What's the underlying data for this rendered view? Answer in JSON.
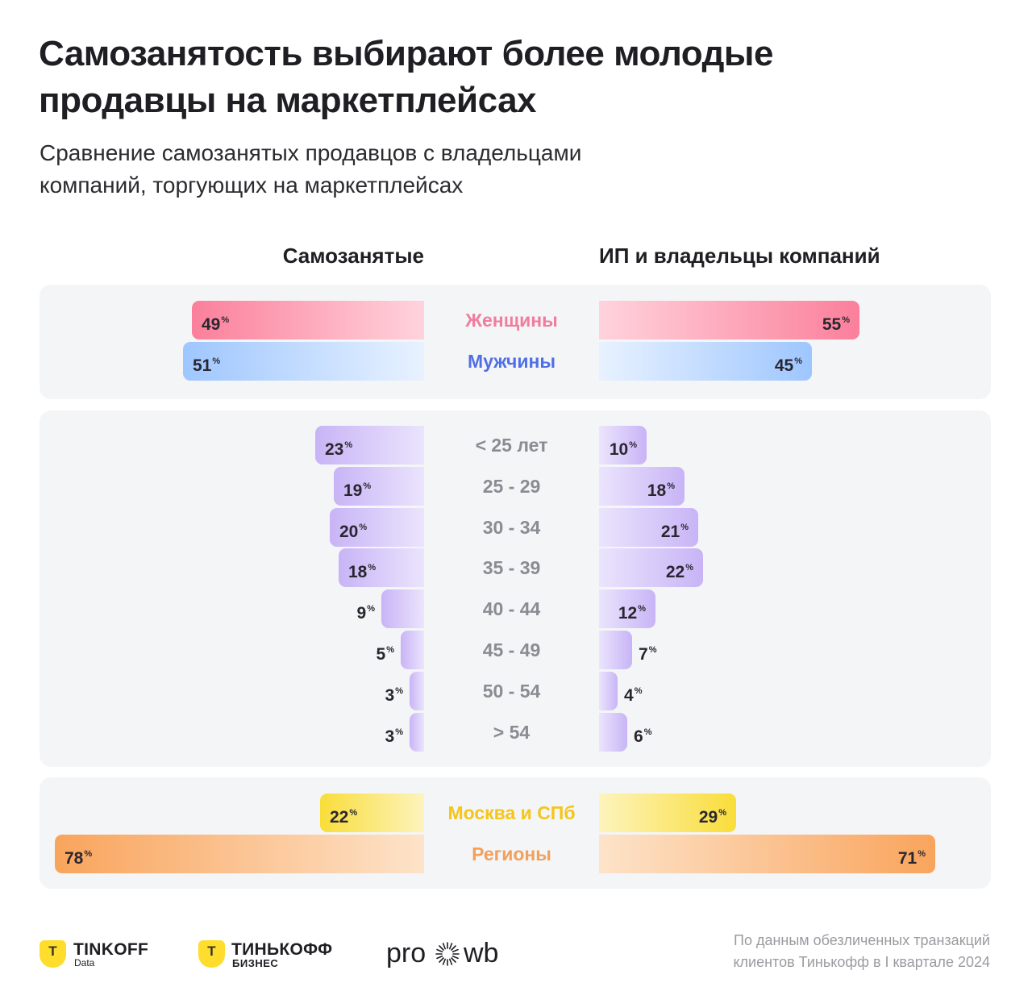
{
  "title_lines": [
    "Самозанятость выбирают более молодые",
    "продавцы на маркетплейсах"
  ],
  "subtitle_lines": [
    "Сравнение самозанятых продавцов с владельцами",
    "компаний, торгующих на маркетплейсах"
  ],
  "columns": {
    "left": "Самозанятые",
    "right": "ИП и владельцы компаний"
  },
  "chart_data": {
    "type": "bar",
    "orientation": "butterfly",
    "title": "Самозанятость выбирают более молодые продавцы на маркетплейсах",
    "subtitle": "Сравнение самозанятых продавцов с владельцами компаний, торгующих на маркетплейсах",
    "unit": "%",
    "groups": [
      {
        "name": "gender",
        "categories": [
          "Женщины",
          "Мужчины"
        ],
        "category_colors": [
          "#ef7e9c",
          "#4f6fe6"
        ],
        "bar_colors": [
          [
            "#fb7f9b",
            "#ffd3dc"
          ],
          [
            "#9ec6ff",
            "#e8f2ff"
          ]
        ],
        "series": [
          {
            "name": "Самозанятые",
            "values": [
              49,
              51
            ]
          },
          {
            "name": "ИП и владельцы компаний",
            "values": [
              55,
              45
            ]
          }
        ]
      },
      {
        "name": "age",
        "categories": [
          "< 25 лет",
          "25 - 29",
          "30 - 34",
          "35 - 39",
          "40 - 44",
          "45 - 49",
          "50 - 54",
          "> 54"
        ],
        "category_colors": [
          "#8b8b92",
          "#8b8b92",
          "#8b8b92",
          "#8b8b92",
          "#8b8b92",
          "#8b8b92",
          "#8b8b92",
          "#8b8b92"
        ],
        "bar_colors": [
          [
            "#c8b4f6",
            "#ebe4fd"
          ]
        ],
        "series": [
          {
            "name": "Самозанятые",
            "values": [
              23,
              19,
              20,
              18,
              9,
              5,
              3,
              3
            ]
          },
          {
            "name": "ИП и владельцы компаний",
            "values": [
              10,
              18,
              21,
              22,
              12,
              7,
              4,
              6
            ]
          }
        ]
      },
      {
        "name": "region",
        "categories": [
          "Москва и СПб",
          "Регионы"
        ],
        "category_colors": [
          "#f5c518",
          "#f2a05c"
        ],
        "bar_colors": [
          [
            "#f9dd3a",
            "#fdf4bd"
          ],
          [
            "#f9a45c",
            "#fde3c9"
          ]
        ],
        "series": [
          {
            "name": "Самозанятые",
            "values": [
              22,
              78
            ]
          },
          {
            "name": "ИП и владельцы компаний",
            "values": [
              29,
              71
            ]
          }
        ]
      }
    ]
  },
  "footer": {
    "logo1": {
      "mark": "T",
      "word": "TINKOFF",
      "sub": "Data",
      "icon": "tinkoff-shield-icon"
    },
    "logo2": {
      "mark": "T",
      "word": "ТИНЬКОФФ",
      "sub": "БИЗНЕС",
      "icon": "tinkoff-shield-icon"
    },
    "logo3": {
      "left": "pro",
      "right": "wb",
      "icon": "starburst-icon"
    },
    "source_lines": [
      "По данным обезличенных транзакций",
      "клиентов Тинькофф в I квартале 2024"
    ]
  }
}
